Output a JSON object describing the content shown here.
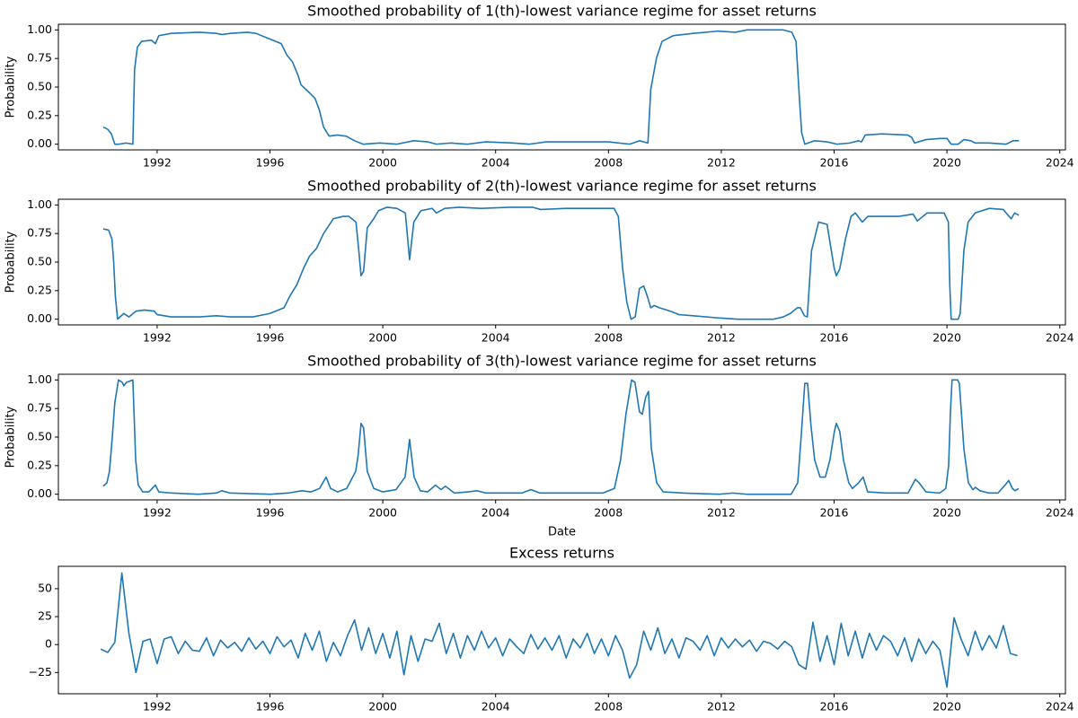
{
  "chart_data": [
    {
      "type": "line",
      "title": "Smoothed probability of 1(th)-lowest variance regime for asset returns",
      "ylabel": "Probability",
      "color": "#1f77b4",
      "xlim": [
        1988.5,
        2024.2
      ],
      "xticks": [
        1992,
        1996,
        2000,
        2004,
        2008,
        2012,
        2016,
        2020,
        2024
      ],
      "ylim": [
        -0.05,
        1.05
      ],
      "yticks": [
        {
          "value": 0,
          "label": "0.00"
        },
        {
          "value": 0.25,
          "label": "0.25"
        },
        {
          "value": 0.5,
          "label": "0.50"
        },
        {
          "value": 0.75,
          "label": "0.75"
        },
        {
          "value": 1,
          "label": "1.00"
        }
      ],
      "x": [
        1990.09,
        1990.25,
        1990.38,
        1990.5,
        1990.65,
        1990.9,
        1991.14,
        1991.2,
        1991.3,
        1991.45,
        1991.8,
        1991.94,
        1992.06,
        1992.5,
        1993.5,
        1994.1,
        1994.3,
        1994.6,
        1995.2,
        1995.5,
        1996.0,
        1996.4,
        1996.6,
        1996.8,
        1997.0,
        1997.1,
        1997.4,
        1997.6,
        1997.75,
        1997.9,
        1998.1,
        1998.4,
        1998.7,
        1999.0,
        1999.3,
        1999.9,
        2000.5,
        2001.1,
        2001.6,
        2001.9,
        2002.4,
        2003.0,
        2003.65,
        2004.6,
        2005.2,
        2005.8,
        2008.0,
        2008.75,
        2009.1,
        2009.4,
        2009.5,
        2009.7,
        2009.9,
        2010.3,
        2011.0,
        2011.9,
        2012.5,
        2012.9,
        2014.2,
        2014.5,
        2014.65,
        2014.77,
        2014.85,
        2014.96,
        2015.3,
        2015.75,
        2016.1,
        2016.55,
        2016.87,
        2016.97,
        2017.1,
        2017.7,
        2018.6,
        2018.75,
        2018.85,
        2019.25,
        2019.75,
        2020.0,
        2020.15,
        2020.4,
        2020.6,
        2020.85,
        2021.0,
        2021.5,
        2022.1,
        2022.35,
        2022.55
      ],
      "values": [
        0.15,
        0.13,
        0.09,
        0.0,
        0.0,
        0.01,
        0.0,
        0.65,
        0.85,
        0.9,
        0.91,
        0.88,
        0.95,
        0.97,
        0.98,
        0.97,
        0.96,
        0.97,
        0.98,
        0.97,
        0.92,
        0.88,
        0.78,
        0.72,
        0.6,
        0.52,
        0.45,
        0.4,
        0.3,
        0.15,
        0.07,
        0.08,
        0.07,
        0.03,
        0.0,
        0.01,
        0.0,
        0.03,
        0.02,
        0.0,
        0.01,
        0.0,
        0.02,
        0.01,
        0.0,
        0.02,
        0.02,
        0.0,
        0.03,
        0.01,
        0.48,
        0.75,
        0.9,
        0.95,
        0.97,
        0.99,
        0.98,
        1.0,
        1.0,
        0.98,
        0.9,
        0.4,
        0.1,
        0.0,
        0.03,
        0.02,
        0.0,
        0.01,
        0.03,
        0.02,
        0.08,
        0.09,
        0.08,
        0.06,
        0.01,
        0.04,
        0.05,
        0.05,
        0.0,
        0.0,
        0.04,
        0.03,
        0.01,
        0.01,
        0.0,
        0.03,
        0.03
      ]
    },
    {
      "type": "line",
      "title": "Smoothed probability of 2(th)-lowest variance regime for asset returns",
      "ylabel": "Probability",
      "color": "#1f77b4",
      "xlim": [
        1988.5,
        2024.2
      ],
      "xticks": [
        1992,
        1996,
        2000,
        2004,
        2008,
        2012,
        2016,
        2020,
        2024
      ],
      "ylim": [
        -0.05,
        1.05
      ],
      "yticks": [
        {
          "value": 0,
          "label": "0.00"
        },
        {
          "value": 0.25,
          "label": "0.25"
        },
        {
          "value": 0.5,
          "label": "0.50"
        },
        {
          "value": 0.75,
          "label": "0.75"
        },
        {
          "value": 1,
          "label": "1.00"
        }
      ],
      "x": [
        1990.09,
        1990.28,
        1990.4,
        1990.46,
        1990.52,
        1990.6,
        1990.82,
        1991.0,
        1991.25,
        1991.55,
        1991.9,
        1992.0,
        1992.5,
        1993.5,
        1994.1,
        1994.6,
        1995.4,
        1996.0,
        1996.5,
        1996.7,
        1996.95,
        1997.2,
        1997.4,
        1997.65,
        1997.9,
        1998.25,
        1998.6,
        1998.8,
        1999.05,
        1999.15,
        1999.23,
        1999.32,
        1999.45,
        1999.68,
        1999.85,
        2000.15,
        2000.5,
        2000.8,
        2000.95,
        2001.1,
        2001.35,
        2001.75,
        2001.9,
        2002.2,
        2002.7,
        2003.5,
        2004.5,
        2005.3,
        2005.6,
        2006.5,
        2007.5,
        2008.2,
        2008.35,
        2008.5,
        2008.65,
        2008.8,
        2008.95,
        2009.1,
        2009.25,
        2009.38,
        2009.5,
        2009.62,
        2009.8,
        2010.2,
        2010.5,
        2011.0,
        2011.95,
        2012.6,
        2013.85,
        2014.2,
        2014.45,
        2014.7,
        2014.8,
        2014.95,
        2015.05,
        2015.2,
        2015.45,
        2015.75,
        2016.0,
        2016.08,
        2016.2,
        2016.4,
        2016.6,
        2016.75,
        2017.0,
        2017.2,
        2018.3,
        2018.8,
        2018.95,
        2019.3,
        2019.9,
        2020.05,
        2020.1,
        2020.15,
        2020.4,
        2020.47,
        2020.6,
        2020.75,
        2021.0,
        2021.5,
        2022.0,
        2022.2,
        2022.28,
        2022.4,
        2022.55
      ],
      "values": [
        0.79,
        0.78,
        0.7,
        0.5,
        0.2,
        0.0,
        0.05,
        0.02,
        0.07,
        0.08,
        0.07,
        0.04,
        0.02,
        0.02,
        0.03,
        0.02,
        0.02,
        0.05,
        0.1,
        0.2,
        0.3,
        0.45,
        0.55,
        0.62,
        0.75,
        0.88,
        0.9,
        0.9,
        0.85,
        0.6,
        0.38,
        0.42,
        0.8,
        0.88,
        0.95,
        0.98,
        0.97,
        0.93,
        0.52,
        0.85,
        0.95,
        0.97,
        0.93,
        0.97,
        0.98,
        0.97,
        0.98,
        0.98,
        0.96,
        0.97,
        0.97,
        0.97,
        0.9,
        0.45,
        0.15,
        0.0,
        0.02,
        0.27,
        0.29,
        0.2,
        0.1,
        0.12,
        0.1,
        0.07,
        0.04,
        0.03,
        0.01,
        0.0,
        0.0,
        0.02,
        0.05,
        0.1,
        0.1,
        0.03,
        0.02,
        0.6,
        0.85,
        0.83,
        0.45,
        0.38,
        0.44,
        0.7,
        0.9,
        0.93,
        0.85,
        0.9,
        0.9,
        0.92,
        0.86,
        0.93,
        0.93,
        0.85,
        0.3,
        0.0,
        0.0,
        0.05,
        0.6,
        0.85,
        0.93,
        0.97,
        0.96,
        0.9,
        0.88,
        0.93,
        0.91
      ]
    },
    {
      "type": "line",
      "title": "Smoothed probability of 3(th)-lowest variance regime for asset returns",
      "ylabel": "Probability",
      "xlabel": "Date",
      "color": "#1f77b4",
      "xlim": [
        1988.5,
        2024.2
      ],
      "xticks": [
        1992,
        1996,
        2000,
        2004,
        2008,
        2012,
        2016,
        2020,
        2024
      ],
      "ylim": [
        -0.05,
        1.05
      ],
      "yticks": [
        {
          "value": 0,
          "label": "0.00"
        },
        {
          "value": 0.25,
          "label": "0.25"
        },
        {
          "value": 0.5,
          "label": "0.50"
        },
        {
          "value": 0.75,
          "label": "0.75"
        },
        {
          "value": 1,
          "label": "1.00"
        }
      ],
      "x": [
        1990.09,
        1990.22,
        1990.31,
        1990.41,
        1990.5,
        1990.63,
        1990.76,
        1990.82,
        1990.92,
        1991.14,
        1991.24,
        1991.33,
        1991.49,
        1991.71,
        1991.94,
        1992.06,
        1992.51,
        1993.46,
        1994.1,
        1994.29,
        1994.58,
        1996.01,
        1996.65,
        1997.13,
        1997.45,
        1997.76,
        1997.99,
        1998.15,
        1998.4,
        1998.72,
        1999.04,
        1999.13,
        1999.23,
        1999.32,
        1999.45,
        1999.68,
        2000.0,
        2000.47,
        2000.79,
        2000.95,
        2001.11,
        2001.33,
        2001.59,
        2001.87,
        2002.06,
        2002.22,
        2002.54,
        2003.02,
        2003.34,
        2003.66,
        2004.93,
        2005.25,
        2005.57,
        2007.8,
        2008.21,
        2008.43,
        2008.62,
        2008.82,
        2008.94,
        2009.1,
        2009.2,
        2009.32,
        2009.42,
        2009.52,
        2009.71,
        2009.94,
        2010.66,
        2011.94,
        2012.41,
        2012.89,
        2014.48,
        2014.71,
        2014.83,
        2014.96,
        2015.06,
        2015.18,
        2015.31,
        2015.5,
        2015.69,
        2015.85,
        2016.01,
        2016.08,
        2016.2,
        2016.33,
        2016.52,
        2016.65,
        2016.87,
        2017.03,
        2017.19,
        2017.83,
        2018.62,
        2018.88,
        2019.01,
        2019.26,
        2019.74,
        2019.96,
        2020.06,
        2020.12,
        2020.18,
        2020.38,
        2020.44,
        2020.6,
        2020.76,
        2020.92,
        2021.01,
        2021.17,
        2021.49,
        2021.81,
        2022.06,
        2022.19,
        2022.32,
        2022.41,
        2022.54
      ],
      "values": [
        0.07,
        0.1,
        0.2,
        0.5,
        0.8,
        1.0,
        0.98,
        0.95,
        0.98,
        1.0,
        0.3,
        0.08,
        0.02,
        0.02,
        0.08,
        0.02,
        0.01,
        0.0,
        0.01,
        0.03,
        0.01,
        0.0,
        0.01,
        0.03,
        0.02,
        0.05,
        0.15,
        0.05,
        0.02,
        0.05,
        0.2,
        0.35,
        0.62,
        0.58,
        0.2,
        0.05,
        0.02,
        0.04,
        0.15,
        0.48,
        0.15,
        0.03,
        0.02,
        0.08,
        0.04,
        0.07,
        0.01,
        0.02,
        0.03,
        0.01,
        0.01,
        0.04,
        0.01,
        0.01,
        0.05,
        0.3,
        0.7,
        1.0,
        0.98,
        0.72,
        0.7,
        0.85,
        0.9,
        0.4,
        0.1,
        0.02,
        0.01,
        0.0,
        0.01,
        0.0,
        0.0,
        0.1,
        0.5,
        0.97,
        0.97,
        0.6,
        0.3,
        0.15,
        0.15,
        0.3,
        0.55,
        0.62,
        0.55,
        0.3,
        0.1,
        0.05,
        0.1,
        0.15,
        0.02,
        0.01,
        0.01,
        0.13,
        0.1,
        0.02,
        0.01,
        0.05,
        0.25,
        0.7,
        1.0,
        1.0,
        0.97,
        0.4,
        0.1,
        0.04,
        0.06,
        0.03,
        0.01,
        0.01,
        0.08,
        0.12,
        0.05,
        0.03,
        0.05
      ]
    },
    {
      "type": "line",
      "title": "Excess returns",
      "color": "#1f77b4",
      "xlim": [
        1988.5,
        2024.2
      ],
      "xticks": [
        1992,
        1996,
        2000,
        2004,
        2008,
        2012,
        2016,
        2020,
        2024
      ],
      "ylim": [
        -44,
        70
      ],
      "yticks": [
        {
          "value": -25,
          "label": "−25"
        },
        0,
        25,
        50
      ],
      "x": [
        1990.0,
        1990.25,
        1990.5,
        1990.75,
        1991.0,
        1991.25,
        1991.5,
        1991.75,
        1992.0,
        1992.25,
        1992.5,
        1992.75,
        1993.0,
        1993.25,
        1993.5,
        1993.75,
        1994.0,
        1994.25,
        1994.5,
        1994.75,
        1995.0,
        1995.25,
        1995.5,
        1995.75,
        1996.0,
        1996.25,
        1996.5,
        1996.75,
        1997.0,
        1997.25,
        1997.5,
        1997.75,
        1998.0,
        1998.25,
        1998.5,
        1998.75,
        1999.0,
        1999.25,
        1999.5,
        1999.75,
        2000.0,
        2000.25,
        2000.5,
        2000.75,
        2001.0,
        2001.25,
        2001.5,
        2001.75,
        2002.0,
        2002.25,
        2002.5,
        2002.75,
        2003.0,
        2003.25,
        2003.5,
        2003.75,
        2004.0,
        2004.25,
        2004.5,
        2004.75,
        2005.0,
        2005.25,
        2005.5,
        2005.75,
        2006.0,
        2006.25,
        2006.5,
        2006.75,
        2007.0,
        2007.25,
        2007.5,
        2007.75,
        2008.0,
        2008.25,
        2008.5,
        2008.75,
        2009.0,
        2009.25,
        2009.5,
        2009.75,
        2010.0,
        2010.25,
        2010.5,
        2010.75,
        2011.0,
        2011.25,
        2011.5,
        2011.75,
        2012.0,
        2012.25,
        2012.5,
        2012.75,
        2013.0,
        2013.25,
        2013.5,
        2013.75,
        2014.0,
        2014.25,
        2014.5,
        2014.75,
        2015.0,
        2015.25,
        2015.5,
        2015.75,
        2016.0,
        2016.25,
        2016.5,
        2016.75,
        2017.0,
        2017.25,
        2017.5,
        2017.75,
        2018.0,
        2018.25,
        2018.5,
        2018.75,
        2019.0,
        2019.25,
        2019.5,
        2019.75,
        2020.0,
        2020.25,
        2020.5,
        2020.75,
        2021.0,
        2021.25,
        2021.5,
        2021.75,
        2022.0,
        2022.25,
        2022.5
      ],
      "values": [
        -4,
        -7,
        2,
        64,
        10,
        -25,
        3,
        5,
        -17,
        5,
        7,
        -8,
        3,
        -5,
        -6,
        6,
        -10,
        4,
        -3,
        2,
        -6,
        6,
        -4,
        3,
        -8,
        7,
        -2,
        4,
        -12,
        10,
        -5,
        12,
        -15,
        2,
        -10,
        8,
        22,
        -5,
        15,
        -8,
        10,
        -12,
        12,
        -27,
        8,
        -15,
        5,
        3,
        19,
        -8,
        10,
        -12,
        8,
        -5,
        12,
        -3,
        6,
        -10,
        5,
        -2,
        -8,
        9,
        -4,
        6,
        -5,
        8,
        -12,
        5,
        -3,
        10,
        -8,
        5,
        -10,
        8,
        -5,
        -30,
        -18,
        12,
        -5,
        15,
        -8,
        5,
        -12,
        6,
        3,
        -5,
        8,
        -10,
        6,
        -3,
        5,
        -2,
        4,
        -6,
        3,
        1,
        -4,
        3,
        -2,
        -18,
        -22,
        20,
        -15,
        8,
        -18,
        19,
        -10,
        12,
        -12,
        10,
        -5,
        8,
        3,
        -10,
        6,
        -15,
        5,
        -8,
        3,
        -5,
        -38,
        24,
        5,
        -10,
        12,
        -5,
        8,
        -3,
        17,
        -8,
        -10
      ]
    }
  ]
}
